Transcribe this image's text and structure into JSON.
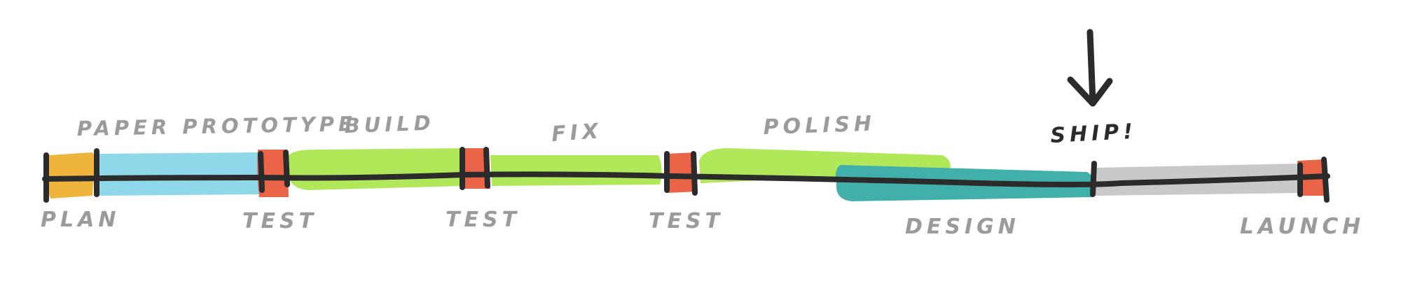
{
  "colors": {
    "plan": "#EEB43C",
    "paper_prototype": "#8ED8EA",
    "build": "#B1E85A",
    "test": "#EA6447",
    "design": "#41AFAA",
    "post_ship": "#C9C9C9",
    "line": "#2B2B2B",
    "label": "#9B9B9B"
  },
  "labels": {
    "plan": "PLAN",
    "paper_prototype": "PAPER PROTOTYPE",
    "test_1": "TEST",
    "build": "BUILD",
    "test_2": "TEST",
    "fix": "FIX",
    "test_3": "TEST",
    "polish": "POLISH",
    "design": "DESIGN",
    "ship": "SHIP!",
    "launch": "LAUNCH"
  }
}
